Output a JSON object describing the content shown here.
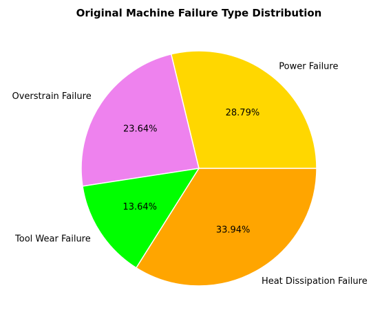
{
  "chart_data": {
    "type": "pie",
    "title": "Original Machine Failure Type Distribution",
    "start_angle_deg": 0,
    "direction": "counterclockwise",
    "edge_color": "#ffffff",
    "slices": [
      {
        "label": "Power Failure",
        "value": 28.79,
        "pct_label": "28.79%",
        "color": "#FFD700"
      },
      {
        "label": "Overstrain Failure",
        "value": 23.64,
        "pct_label": "23.64%",
        "color": "#EE82EE"
      },
      {
        "label": "Tool Wear Failure",
        "value": 13.64,
        "pct_label": "13.64%",
        "color": "#00FF00"
      },
      {
        "label": "Heat Dissipation Failure",
        "value": 33.94,
        "pct_label": "33.94%",
        "color": "#FFA500"
      }
    ]
  }
}
